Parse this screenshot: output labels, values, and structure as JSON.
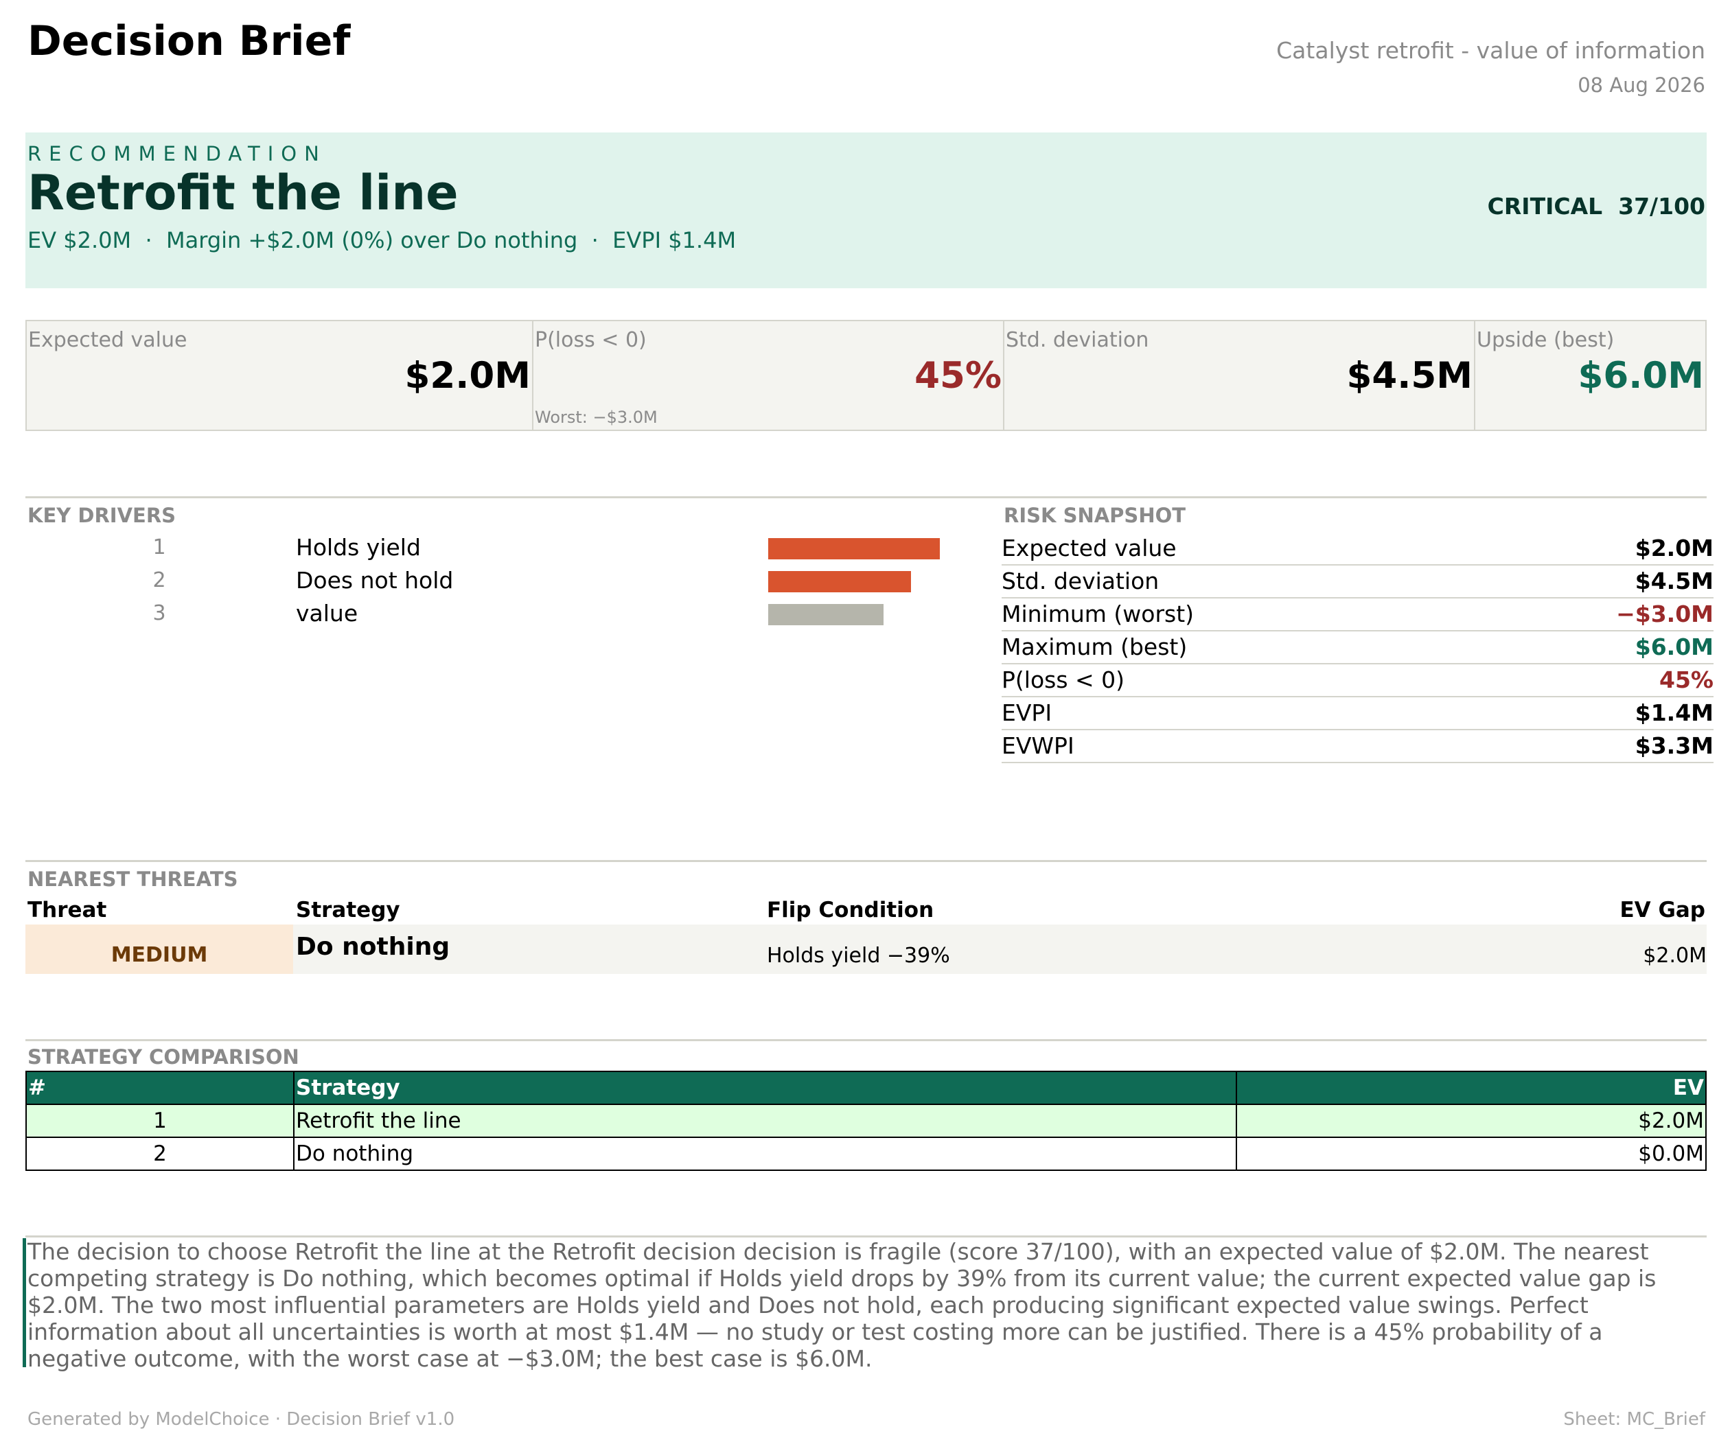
{
  "header": {
    "title": "Decision Brief",
    "subtitle": "Catalyst retrofit - value of information",
    "date": "08 Aug 2026"
  },
  "recommendation": {
    "eyebrow": "RECOMMENDATION",
    "title": "Retrofit the line",
    "summary": "EV $2.0M  ·  Margin +$2.0M (0%) over Do nothing  ·  EVPI $1.4M",
    "score": "CRITICAL  37/100"
  },
  "kpis": [
    {
      "label": "Expected value",
      "value": "$2.0M",
      "note": "",
      "tone": "neutral"
    },
    {
      "label": "P(loss < 0)",
      "value": "45%",
      "note": "Worst: −$3.0M",
      "tone": "negative"
    },
    {
      "label": "Std. deviation",
      "value": "$4.5M",
      "note": "",
      "tone": "neutral"
    },
    {
      "label": "Upside (best)",
      "value": "$6.0M",
      "note": "",
      "tone": "positive"
    }
  ],
  "key_drivers": {
    "heading": "KEY DRIVERS",
    "items": [
      {
        "rank": "1",
        "name": "Holds yield",
        "relative_impact": 1.0,
        "color": "#d9542e"
      },
      {
        "rank": "2",
        "name": "Does not hold",
        "relative_impact": 0.83,
        "color": "#d9542e"
      },
      {
        "rank": "3",
        "name": "value",
        "relative_impact": 0.67,
        "color": "#b5b5ab"
      }
    ]
  },
  "risk_snapshot": {
    "heading": "RISK SNAPSHOT",
    "rows": [
      {
        "label": "Expected value",
        "value": "$2.0M",
        "tone": "neutral"
      },
      {
        "label": "Std. deviation",
        "value": "$4.5M",
        "tone": "neutral"
      },
      {
        "label": "Minimum (worst)",
        "value": "−$3.0M",
        "tone": "negative"
      },
      {
        "label": "Maximum (best)",
        "value": "$6.0M",
        "tone": "positive"
      },
      {
        "label": "P(loss < 0)",
        "value": "45%",
        "tone": "negative"
      },
      {
        "label": "EVPI",
        "value": "$1.4M",
        "tone": "neutral"
      },
      {
        "label": "EVWPI",
        "value": "$3.3M",
        "tone": "neutral"
      }
    ]
  },
  "threats": {
    "heading": "NEAREST THREATS",
    "columns": [
      "Threat",
      "Strategy",
      "Flip Condition",
      "EV Gap"
    ],
    "rows": [
      {
        "level": "MEDIUM",
        "strategy": "Do nothing",
        "flip": "Holds yield −39%",
        "gap": "$2.0M"
      }
    ]
  },
  "comparison": {
    "heading": "STRATEGY COMPARISON",
    "columns": [
      "#",
      "Strategy",
      "EV"
    ],
    "rows": [
      {
        "rank": "1",
        "strategy": "Retrofit the line",
        "ev": "$2.0M"
      },
      {
        "rank": "2",
        "strategy": "Do nothing",
        "ev": "$0.0M"
      }
    ]
  },
  "narrative": "The decision to choose Retrofit the line at the Retrofit decision decision is fragile (score 37/100), with an expected value of $2.0M. The nearest competing strategy is Do nothing, which becomes optimal if Holds yield drops by 39% from its current value; the current expected value gap is $2.0M. The two most influential parameters are Holds yield and Does not hold, each producing significant expected value swings. Perfect information about all uncertainties is worth at most $1.4M — no study or test costing more can be justified. There is a 45% probability of a negative outcome, with the worst case at −$3.0M; the best case is $6.0M.",
  "footer": {
    "left": "Generated by ModelChoice · Decision Brief v1.0",
    "right": "Sheet: MC_Brief"
  },
  "colors": {
    "accent": "#0f6b55",
    "negative": "#9a2a2a",
    "positive": "#0f6b55",
    "band": "#e0f3ec"
  }
}
